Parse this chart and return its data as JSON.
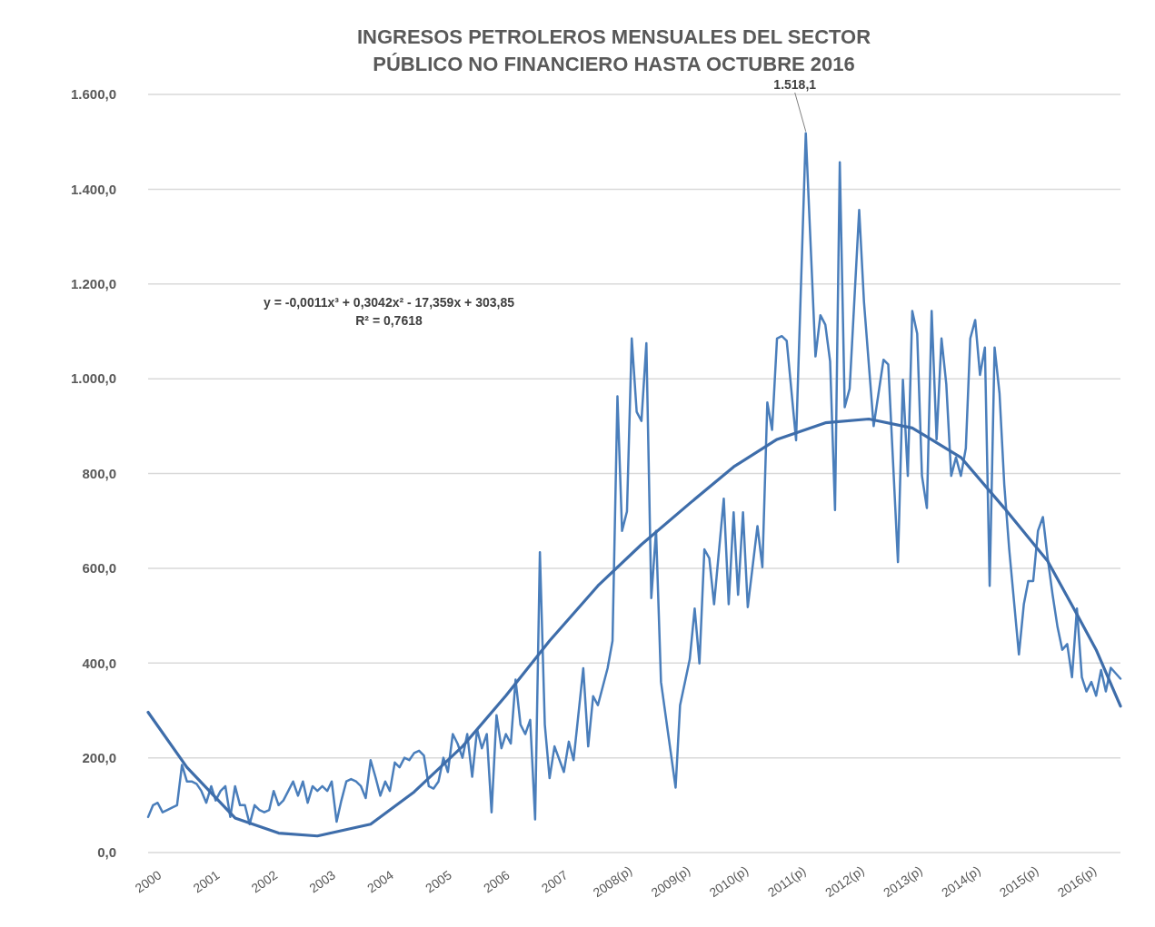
{
  "chart_data": {
    "type": "line",
    "title": "INGRESOS PETROLEROS MENSUALES DEL SECTOR PÚBLICO NO FINANCIERO HASTA OCTUBRE 2016",
    "xlim": [
      "2000-01",
      "2016-10"
    ],
    "xticks": [
      {
        "value": "2000-01",
        "label": "2000"
      },
      {
        "value": "2001-01",
        "label": "2001"
      },
      {
        "value": "2002-01",
        "label": "2002"
      },
      {
        "value": "2003-01",
        "label": "2003"
      },
      {
        "value": "2004-01",
        "label": "2004"
      },
      {
        "value": "2005-01",
        "label": "2005"
      },
      {
        "value": "2006-01",
        "label": "2006"
      },
      {
        "value": "2007-01",
        "label": "2007"
      },
      {
        "value": "2008-01",
        "label": "2008(p)"
      },
      {
        "value": "2009-01",
        "label": "2009(p)"
      },
      {
        "value": "2010-01",
        "label": "2010(p)"
      },
      {
        "value": "2011-01",
        "label": "2011(p)"
      },
      {
        "value": "2012-01",
        "label": "2012(p)"
      },
      {
        "value": "2013-01",
        "label": "2013(p)"
      },
      {
        "value": "2014-01",
        "label": "2014(p)"
      },
      {
        "value": "2015-01",
        "label": "2015(p)"
      },
      {
        "value": "2016-01",
        "label": "2016(p)"
      }
    ],
    "ylim": [
      0,
      1600
    ],
    "yticks": [
      {
        "value": 0,
        "label": "0,0"
      },
      {
        "value": 200,
        "label": "200,0"
      },
      {
        "value": 400,
        "label": "400,0"
      },
      {
        "value": 600,
        "label": "600,0"
      },
      {
        "value": 800,
        "label": "800,0"
      },
      {
        "value": 1000,
        "label": "1.000,0"
      },
      {
        "value": 1200,
        "label": "1.200,0"
      },
      {
        "value": 1400,
        "label": "1.400,0"
      },
      {
        "value": 1600,
        "label": "1.600,0"
      }
    ],
    "grid": "y",
    "series": [
      {
        "color": "#4a7ebb",
        "x": [
          "2000-01",
          "2000-02",
          "2000-03",
          "2000-04",
          "2000-05",
          "2000-06",
          "2000-07",
          "2000-08",
          "2000-09",
          "2000-10",
          "2000-11",
          "2000-12",
          "2001-01",
          "2001-02",
          "2001-03",
          "2001-04",
          "2001-05",
          "2001-06",
          "2001-07",
          "2001-08",
          "2001-09",
          "2001-10",
          "2001-11",
          "2001-12",
          "2002-01",
          "2002-02",
          "2002-03",
          "2002-04",
          "2002-05",
          "2002-06",
          "2002-07",
          "2002-08",
          "2002-09",
          "2002-10",
          "2002-11",
          "2002-12",
          "2003-01",
          "2003-02",
          "2003-03",
          "2003-04",
          "2003-05",
          "2003-06",
          "2003-07",
          "2003-08",
          "2003-09",
          "2003-10",
          "2003-11",
          "2003-12",
          "2004-01",
          "2004-02",
          "2004-03",
          "2004-04",
          "2004-05",
          "2004-06",
          "2004-07",
          "2004-08",
          "2004-09",
          "2004-10",
          "2004-11",
          "2004-12",
          "2005-01",
          "2005-02",
          "2005-03",
          "2005-04",
          "2005-05",
          "2005-06",
          "2005-07",
          "2005-08",
          "2005-09",
          "2005-10",
          "2005-11",
          "2005-12",
          "2006-01",
          "2006-02",
          "2006-03",
          "2006-04",
          "2006-05",
          "2006-06",
          "2006-07",
          "2006-08",
          "2006-09",
          "2006-10",
          "2006-11",
          "2006-12",
          "2007-01",
          "2007-03",
          "2007-04",
          "2007-05",
          "2007-07",
          "2007-08",
          "2007-09",
          "2007-10",
          "2007-12",
          "2008-01",
          "2008-02",
          "2008-03",
          "2008-04",
          "2008-05",
          "2008-06",
          "2008-07",
          "2008-08",
          "2008-09",
          "2008-10",
          "2008-11",
          "2009-02",
          "2009-03",
          "2009-04",
          "2009-05",
          "2009-06",
          "2009-07",
          "2009-08",
          "2009-09",
          "2009-10",
          "2009-12",
          "2010-01",
          "2010-02",
          "2010-03",
          "2010-04",
          "2010-05",
          "2010-07",
          "2010-08",
          "2010-09",
          "2010-10",
          "2010-11",
          "2010-12",
          "2011-01",
          "2011-03",
          "2011-05",
          "2011-07",
          "2011-08",
          "2011-09",
          "2011-10",
          "2011-11",
          "2011-12",
          "2012-01",
          "2012-02",
          "2012-04",
          "2012-05",
          "2012-07",
          "2012-09",
          "2012-10",
          "2012-12",
          "2013-01",
          "2013-02",
          "2013-03",
          "2013-04",
          "2013-05",
          "2013-06",
          "2013-07",
          "2013-08",
          "2013-09",
          "2013-10",
          "2013-11",
          "2013-12",
          "2014-01",
          "2014-02",
          "2014-03",
          "2014-04",
          "2014-05",
          "2014-06",
          "2014-07",
          "2014-08",
          "2014-09",
          "2014-10",
          "2014-11",
          "2015-01",
          "2015-02",
          "2015-03",
          "2015-04",
          "2015-05",
          "2015-06",
          "2015-07",
          "2015-08",
          "2015-09",
          "2015-10",
          "2015-11",
          "2015-12",
          "2016-01",
          "2016-02",
          "2016-03",
          "2016-04",
          "2016-05",
          "2016-06",
          "2016-07",
          "2016-08",
          "2016-10"
        ],
        "values": [
          75,
          100,
          105,
          85,
          90,
          95,
          100,
          185,
          150,
          150,
          145,
          130,
          105,
          140,
          110,
          130,
          140,
          75,
          140,
          100,
          100,
          60,
          100,
          90,
          85,
          90,
          130,
          100,
          110,
          130,
          150,
          120,
          150,
          105,
          140,
          130,
          140,
          130,
          150,
          65,
          110,
          150,
          155,
          150,
          140,
          115,
          195,
          160,
          120,
          150,
          130,
          190,
          180,
          200,
          195,
          210,
          215,
          205,
          140,
          135,
          150,
          200,
          170,
          250,
          230,
          200,
          250,
          160,
          260,
          220,
          250,
          85,
          290,
          220,
          250,
          230,
          365,
          270,
          250,
          280,
          70,
          634,
          270,
          157,
          224,
          170,
          234,
          195,
          389,
          224,
          330,
          311,
          389,
          447,
          963,
          679,
          720,
          1085,
          930,
          911,
          1075,
          537,
          679,
          360,
          137,
          311,
          360,
          408,
          515,
          399,
          640,
          621,
          524,
          747,
          524,
          718,
          544,
          718,
          518,
          689,
          602,
          950,
          892,
          1085,
          1090,
          1080,
          870,
          1518.1,
          1047,
          1134,
          1114,
          1037,
          723,
          1457,
          940,
          979,
          1356,
          1163,
          900,
          1040,
          1030,
          613,
          998,
          795,
          1143,
          1095,
          795,
          727,
          1143,
          872,
          1085,
          989,
          795,
          834,
          795,
          853,
          1085,
          1124,
          1008,
          1066,
          563,
          1066,
          969,
          776,
          640,
          418,
          524,
          573,
          573,
          679,
          708,
          621,
          544,
          476,
          428,
          440,
          370,
          515,
          370,
          340,
          360,
          331,
          385,
          340,
          390,
          367
        ]
      },
      {
        "type": "line",
        "color": "#3e6daa",
        "x": [
          "2000-01",
          "2000-09",
          "2001-07",
          "2002-04",
          "2002-12",
          "2003-11",
          "2004-08",
          "2005-06",
          "2006-03",
          "2006-12",
          "2007-10",
          "2008-07",
          "2009-05",
          "2010-02",
          "2010-11",
          "2011-09",
          "2012-06",
          "2013-03",
          "2014-01",
          "2014-10",
          "2015-07",
          "2016-01",
          "2016-05",
          "2016-10"
        ],
        "values": [
          296,
          180,
          73,
          41,
          35,
          60,
          128,
          224,
          331,
          447,
          563,
          650,
          737,
          814,
          872,
          907,
          915,
          896,
          834,
          727,
          615,
          503,
          428,
          309
        ]
      }
    ],
    "annotations": [
      {
        "text": "1.518,1",
        "x": "2011-05",
        "y": 1518.1
      },
      "y = -0,0011x³ + 0,3042x² - 17,359x + 303,85",
      "R² = 0,7618"
    ]
  }
}
